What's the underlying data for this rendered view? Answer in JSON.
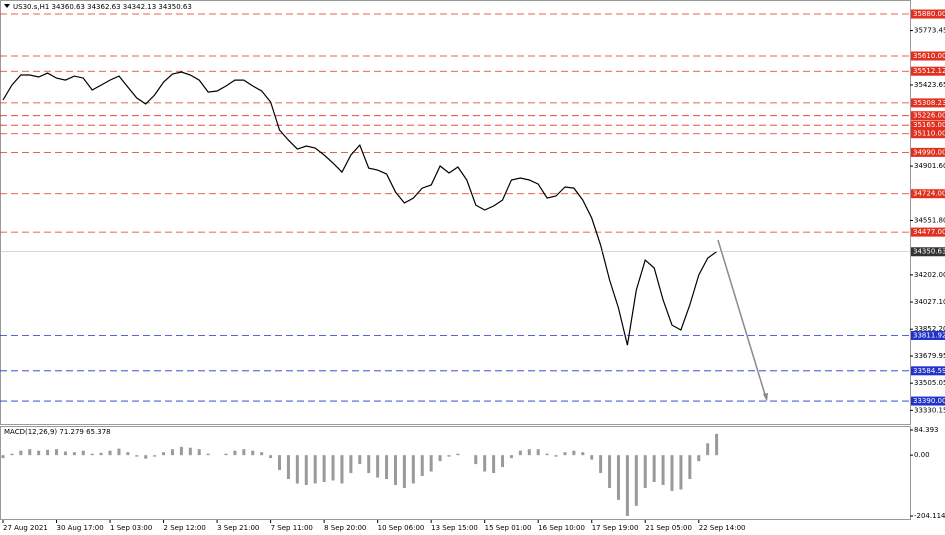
{
  "chart_data": [
    {
      "type": "line",
      "title": "US30.s,H1  34360.63 34362.63 34342.13 34350.63",
      "categories": [
        "27 Aug 2021",
        null,
        null,
        null,
        null,
        null,
        "30 Aug 17:00",
        null,
        null,
        null,
        null,
        null,
        "1 Sep 03:00",
        null,
        null,
        null,
        null,
        null,
        "2 Sep 12:00",
        null,
        null,
        null,
        null,
        null,
        "3 Sep 21:00",
        null,
        null,
        null,
        null,
        null,
        "7 Sep 11:00",
        null,
        null,
        null,
        null,
        null,
        "8 Sep 20:00",
        null,
        null,
        null,
        null,
        null,
        "10 Sep 06:00",
        null,
        null,
        null,
        null,
        null,
        "13 Sep 15:00",
        null,
        null,
        null,
        null,
        null,
        "15 Sep 01:00",
        null,
        null,
        null,
        null,
        null,
        "16 Sep 10:00",
        null,
        null,
        null,
        null,
        null,
        "17 Sep 19:00",
        null,
        null,
        null,
        null,
        null,
        "21 Sep 05:00",
        null,
        null,
        null,
        null,
        null,
        "22 Sep 14:00",
        null,
        null
      ],
      "values": [
        35327,
        35423,
        35488,
        35488,
        35475,
        35500,
        35468,
        35455,
        35481,
        35468,
        35391,
        35423,
        35455,
        35481,
        35410,
        35340,
        35301,
        35359,
        35443,
        35494,
        35507,
        35488,
        35455,
        35378,
        35385,
        35417,
        35455,
        35455,
        35417,
        35385,
        35314,
        35134,
        35069,
        35011,
        35031,
        35018,
        34973,
        34921,
        34863,
        34973,
        35037,
        34889,
        34876,
        34851,
        34735,
        34664,
        34696,
        34760,
        34780,
        34902,
        34857,
        34896,
        34812,
        34651,
        34619,
        34645,
        34683,
        34812,
        34825,
        34812,
        34786,
        34696,
        34709,
        34767,
        34760,
        34683,
        34568,
        34394,
        34169,
        33988,
        33750,
        34104,
        34297,
        34246,
        34040,
        33879,
        33847,
        34008,
        34201,
        34310,
        34350.63
      ],
      "color": "#000000",
      "ylim": [
        33236,
        35951
      ],
      "yticks": [
        {
          "value": 35773.45,
          "label": "35773.45"
        },
        {
          "value": 35423.65,
          "label": "35423.65"
        },
        {
          "value": 34901.6,
          "label": "34901.60"
        },
        {
          "value": 34551.8,
          "label": "34551.80"
        },
        {
          "value": 34202,
          "label": "34202.00"
        },
        {
          "value": 34027.1,
          "label": "34027.10"
        },
        {
          "value": 33852.2,
          "label": "33852.20"
        },
        {
          "value": 33679.95,
          "label": "33679.95"
        },
        {
          "value": 33505.05,
          "label": "33505.05"
        },
        {
          "value": 33330.15,
          "label": "33330.15"
        }
      ],
      "levels": [
        {
          "value": 35880,
          "label": "35880.00",
          "color": "#e0301e"
        },
        {
          "value": 35610,
          "label": "35610.00",
          "color": "#e0301e"
        },
        {
          "value": 35512.12,
          "label": "35512.12",
          "color": "#e0301e"
        },
        {
          "value": 35308.23,
          "label": "35308.23",
          "color": "#e0301e"
        },
        {
          "value": 35226,
          "label": "35226.00",
          "color": "#e0301e"
        },
        {
          "value": 35165,
          "label": "35165.00",
          "color": "#e0301e"
        },
        {
          "value": 35110,
          "label": "35110.00",
          "color": "#e0301e"
        },
        {
          "value": 34990,
          "label": "34990.00",
          "color": "#e0301e"
        },
        {
          "value": 34724,
          "label": "34724.00",
          "color": "#e0301e"
        },
        {
          "value": 34477,
          "label": "34477.00",
          "color": "#e0301e"
        },
        {
          "value": 33811.92,
          "label": "33811.92",
          "color": "#2233cc"
        },
        {
          "value": 33584.59,
          "label": "33584.59",
          "color": "#2233cc"
        },
        {
          "value": 33390,
          "label": "33390.00",
          "color": "#2233cc"
        }
      ],
      "last_price": 34350.63
    },
    {
      "type": "bar",
      "title": "MACD(12,26,9) 71.279 65.378",
      "values": [
        -10,
        5,
        15,
        20,
        15,
        18,
        20,
        12,
        10,
        15,
        5,
        8,
        15,
        22,
        10,
        -5,
        -12,
        -5,
        10,
        20,
        28,
        25,
        20,
        5,
        0,
        5,
        15,
        20,
        15,
        10,
        -10,
        -50,
        -80,
        -95,
        -100,
        -95,
        -90,
        -85,
        -95,
        -60,
        -30,
        -60,
        -75,
        -80,
        -100,
        -110,
        -95,
        -70,
        -55,
        -20,
        -5,
        5,
        0,
        -30,
        -55,
        -60,
        -40,
        -10,
        15,
        20,
        20,
        5,
        -5,
        10,
        15,
        10,
        -15,
        -60,
        -110,
        -150,
        -204,
        -170,
        -110,
        -90,
        -100,
        -120,
        -115,
        -80,
        -20,
        40,
        71.279
      ],
      "color": "#9a9a9a",
      "ylim": [
        -204.114,
        84.393
      ],
      "yticks": [
        84.393,
        {
          "value": 0,
          "label": "0.00"
        },
        -204.114
      ]
    }
  ]
}
